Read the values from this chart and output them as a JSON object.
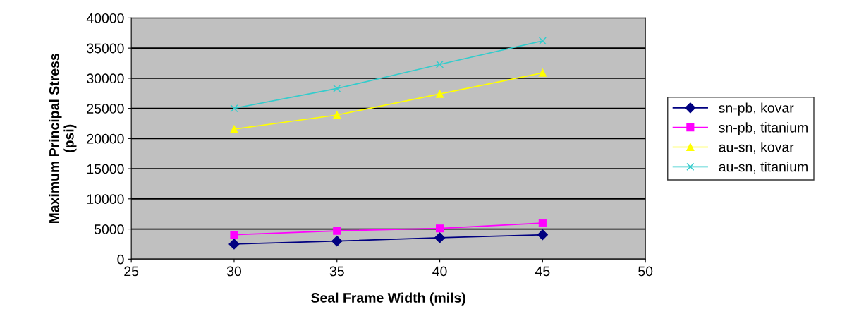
{
  "chart_data": {
    "type": "line",
    "xlabel": "Seal Frame Width (mils)",
    "ylabel": "Maximum Principal Stress\n(psi)",
    "x": [
      30,
      35,
      40,
      45
    ],
    "series": [
      {
        "name": "sn-pb, kovar",
        "color": "#000080",
        "marker": "diamond",
        "values": [
          2500,
          3000,
          3550,
          4050
        ]
      },
      {
        "name": "sn-pb, titanium",
        "color": "#ff00ff",
        "marker": "square",
        "values": [
          4050,
          4700,
          5100,
          6000
        ]
      },
      {
        "name": "au-sn, kovar",
        "color": "#ffff00",
        "marker": "triangle",
        "values": [
          21550,
          23900,
          27400,
          30900
        ]
      },
      {
        "name": "au-sn, titanium",
        "color": "#33cccc",
        "marker": "cross",
        "values": [
          25000,
          28300,
          32300,
          36200
        ]
      }
    ],
    "xlim": [
      25,
      50
    ],
    "xticks": [
      25,
      30,
      35,
      40,
      45,
      50
    ],
    "ylim": [
      0,
      40000
    ],
    "yticks": [
      0,
      5000,
      10000,
      15000,
      20000,
      25000,
      30000,
      35000,
      40000
    ],
    "grid": "y",
    "legend": "right"
  }
}
